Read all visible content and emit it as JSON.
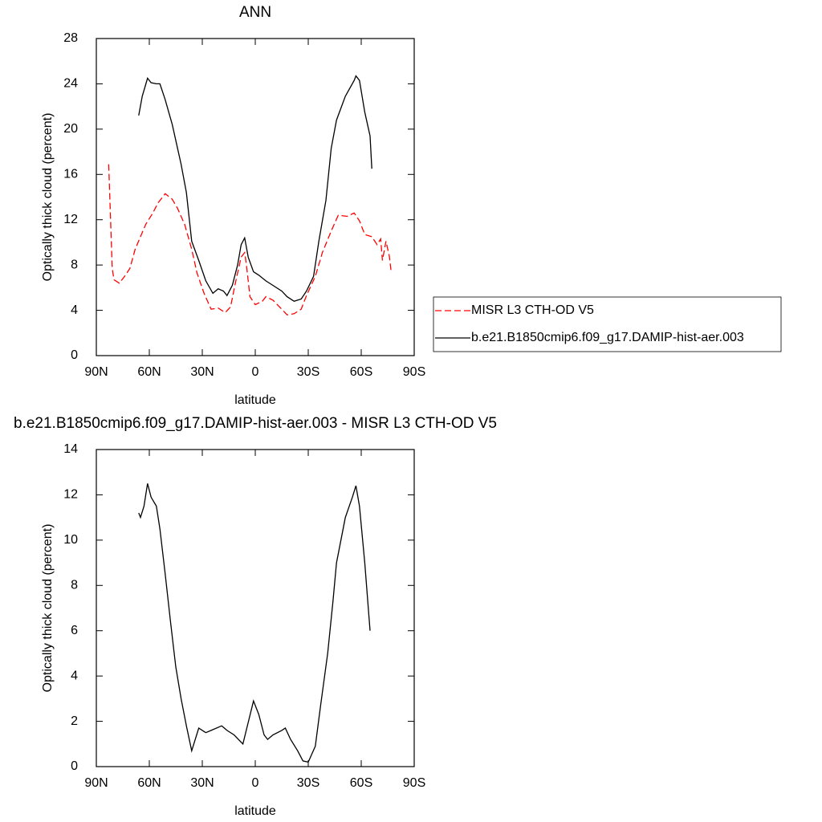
{
  "chart_data": [
    {
      "type": "line",
      "title": "ANN",
      "x_label": "latitude",
      "y_label": "Optically thick cloud (percent)",
      "xlim": [
        90,
        -90
      ],
      "xticks": [
        {
          "value": 90,
          "label": "90N"
        },
        {
          "value": 60,
          "label": "60N"
        },
        {
          "value": 30,
          "label": "30N"
        },
        0,
        {
          "value": -30,
          "label": "30S"
        },
        {
          "value": -60,
          "label": "60S"
        },
        {
          "value": -90,
          "label": "90S"
        }
      ],
      "ylim": [
        0,
        28
      ],
      "yticks": [
        0,
        4,
        8,
        12,
        16,
        20,
        24,
        28
      ],
      "legend": "right",
      "series": [
        {
          "name": "MISR L3 CTH-OD V5",
          "color": "#ff0000",
          "dashed": true,
          "x": [
            83,
            81,
            80,
            77,
            74,
            71,
            68,
            65,
            62,
            58,
            55,
            51,
            47,
            44,
            40,
            36,
            33,
            29,
            25,
            21,
            17,
            14,
            11,
            8,
            6,
            5,
            3,
            0,
            -4,
            -6,
            -10,
            -15,
            -18,
            -22,
            -26,
            -29,
            -34,
            -38,
            -43,
            -47,
            -52,
            -56,
            -59,
            -62,
            -66,
            -69,
            -71,
            -72,
            -74,
            -76,
            -77
          ],
          "values": [
            16.9,
            7.7,
            6.7,
            6.4,
            7.0,
            7.7,
            9.4,
            10.5,
            11.6,
            12.6,
            13.5,
            14.3,
            13.8,
            13.0,
            11.6,
            9.4,
            7.3,
            5.5,
            4.1,
            4.2,
            3.8,
            4.3,
            6.6,
            8.7,
            9.1,
            8.0,
            5.2,
            4.5,
            4.8,
            5.2,
            4.9,
            4.1,
            3.6,
            3.7,
            4.1,
            5.3,
            7.0,
            9.1,
            11.0,
            12.4,
            12.3,
            12.6,
            11.9,
            10.7,
            10.5,
            9.8,
            10.3,
            8.4,
            10.1,
            8.7,
            7.3
          ]
        },
        {
          "name": "b.e21.B1850cmip6.f09_g17.DAMIP-hist-aer.003",
          "color": "#000000",
          "dashed": false,
          "x": [
            66,
            64,
            61,
            59,
            56,
            54,
            51,
            47,
            42,
            39,
            36,
            32,
            28,
            24,
            21,
            18,
            16,
            13,
            10,
            8,
            6,
            4,
            1,
            -2,
            -6,
            -10,
            -15,
            -18,
            -22,
            -26,
            -29,
            -33,
            -36,
            -40,
            -43,
            -46,
            -51,
            -56,
            -57,
            -59,
            -62,
            -65,
            -66
          ],
          "values": [
            21.2,
            22.9,
            24.5,
            24.1,
            24.0,
            24.0,
            22.6,
            20.4,
            16.9,
            14.4,
            10.1,
            8.4,
            6.6,
            5.5,
            5.9,
            5.7,
            5.3,
            6.2,
            8.0,
            9.8,
            10.4,
            8.7,
            7.4,
            7.1,
            6.6,
            6.2,
            5.7,
            5.2,
            4.8,
            5.0,
            5.7,
            7.0,
            10.1,
            13.7,
            18.3,
            20.8,
            22.9,
            24.3,
            24.7,
            24.3,
            21.5,
            19.4,
            16.5
          ]
        }
      ]
    },
    {
      "type": "line",
      "title": "b.e21.B1850cmip6.f09_g17.DAMIP-hist-aer.003 - MISR L3 CTH-OD V5",
      "x_label": "latitude",
      "y_label": "Optically thick cloud (percent)",
      "xlim": [
        90,
        -90
      ],
      "xticks": [
        {
          "value": 90,
          "label": "90N"
        },
        {
          "value": 60,
          "label": "60N"
        },
        {
          "value": 30,
          "label": "30N"
        },
        0,
        {
          "value": -30,
          "label": "30S"
        },
        {
          "value": -60,
          "label": "60S"
        },
        {
          "value": -90,
          "label": "90S"
        }
      ],
      "ylim": [
        0,
        14
      ],
      "yticks": [
        0,
        2,
        4,
        6,
        8,
        10,
        12,
        14
      ],
      "series": [
        {
          "color": "#000000",
          "dashed": false,
          "x": [
            66,
            65,
            63,
            61,
            59,
            56,
            54,
            51,
            48,
            45,
            42,
            39,
            36,
            32,
            28,
            25,
            19,
            16,
            12,
            7,
            4,
            1,
            -2,
            -5,
            -7,
            -10,
            -15,
            -17,
            -20,
            -24,
            -27,
            -30,
            -34,
            -37,
            -41,
            -44,
            -46,
            -51,
            -55,
            -57,
            -59,
            -62,
            -65
          ],
          "values": [
            11.2,
            11.0,
            11.5,
            12.5,
            11.9,
            11.5,
            10.5,
            8.5,
            6.4,
            4.4,
            3.0,
            1.8,
            0.7,
            1.7,
            1.5,
            1.6,
            1.8,
            1.6,
            1.4,
            1.0,
            1.95,
            2.9,
            2.3,
            1.4,
            1.2,
            1.4,
            1.6,
            1.7,
            1.2,
            0.7,
            0.25,
            0.2,
            0.9,
            2.7,
            5.0,
            7.3,
            9.0,
            11.0,
            11.9,
            12.4,
            11.5,
            9.0,
            6.0
          ]
        }
      ]
    }
  ]
}
